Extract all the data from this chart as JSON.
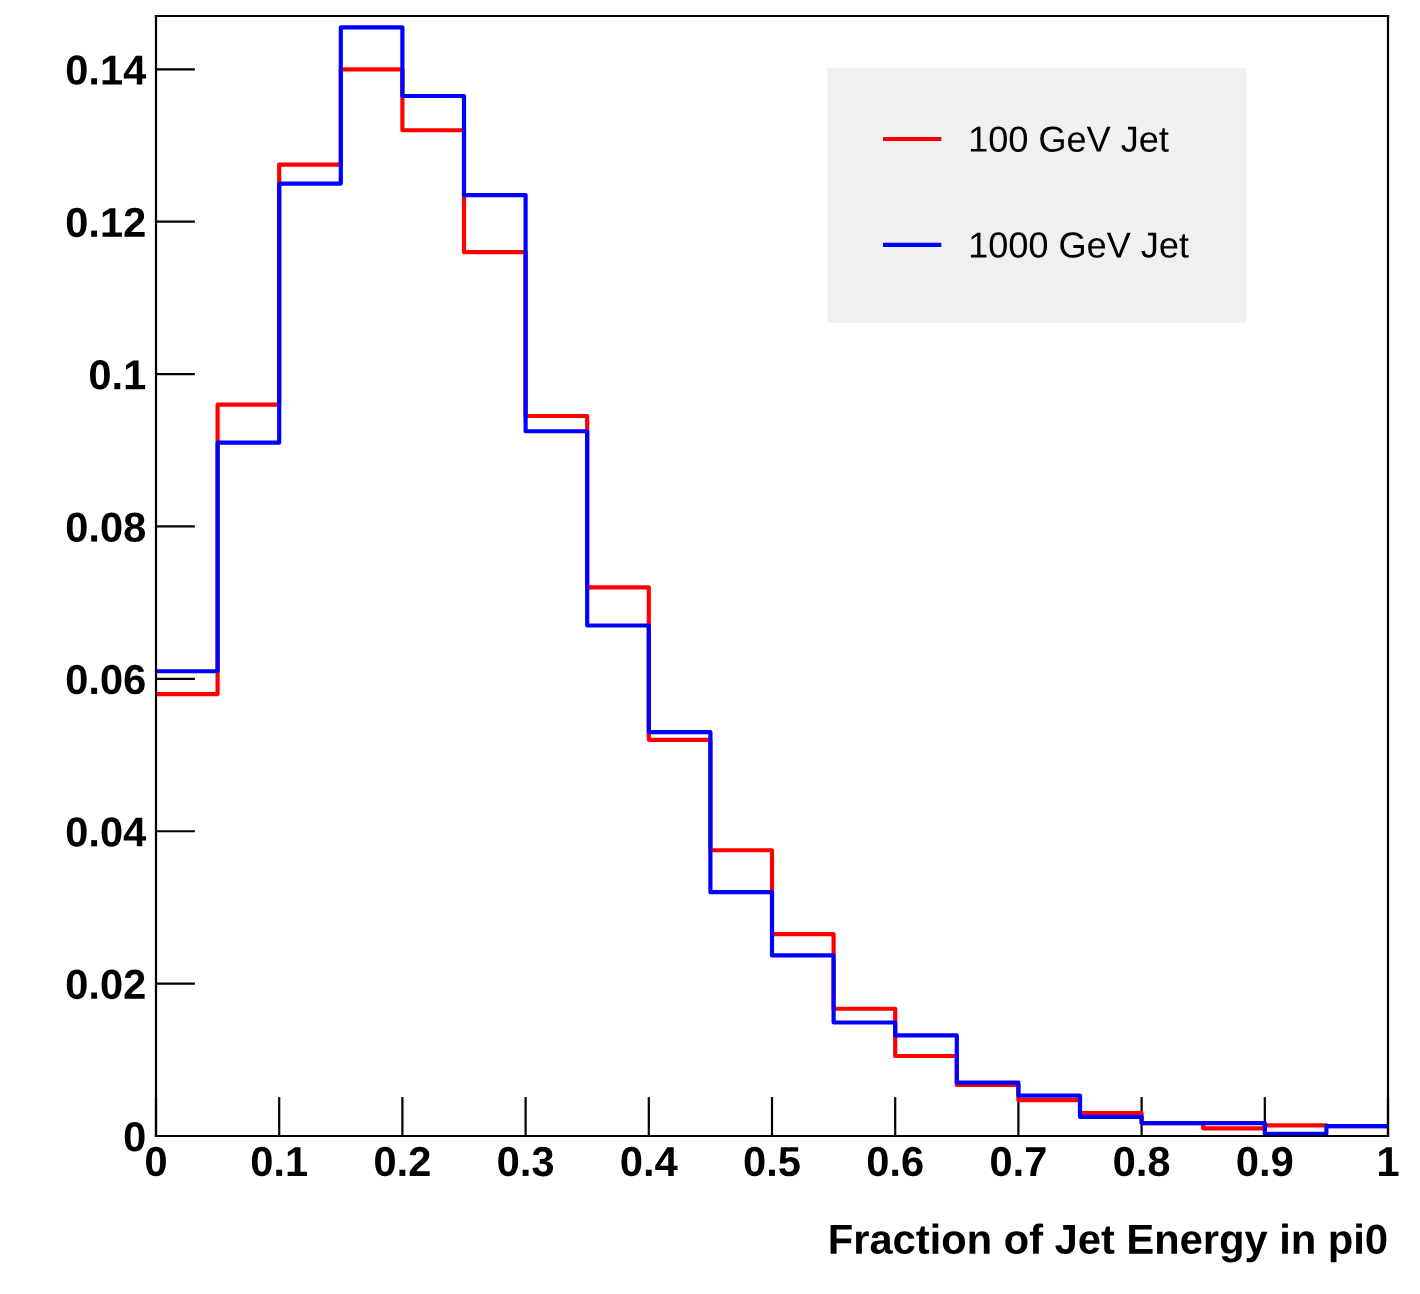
{
  "chart_data": {
    "type": "histogram",
    "xlabel": "Fraction of Jet Energy in pi0",
    "bins": [
      0,
      0.05,
      0.1,
      0.15,
      0.2,
      0.25,
      0.3,
      0.35,
      0.4,
      0.45,
      0.5,
      0.55,
      0.6,
      0.65,
      0.7,
      0.75,
      0.8,
      0.85,
      0.9,
      0.95,
      1
    ],
    "series": [
      {
        "name": "100 GeV Jet",
        "color": "#ff0000",
        "values": [
          0.058,
          0.096,
          0.1275,
          0.14,
          0.132,
          0.116,
          0.0945,
          0.072,
          0.052,
          0.0375,
          0.0265,
          0.0167,
          0.0105,
          0.0067,
          0.0047,
          0.003,
          0.0017,
          0.001,
          0.0014,
          0.0013
        ]
      },
      {
        "name": "1000 GeV Jet",
        "color": "#0000ff",
        "values": [
          0.061,
          0.091,
          0.125,
          0.1455,
          0.1365,
          0.1235,
          0.0925,
          0.067,
          0.053,
          0.032,
          0.0237,
          0.0149,
          0.0132,
          0.007,
          0.0053,
          0.0025,
          0.0017,
          0.0017,
          0.0003,
          0.0013
        ]
      }
    ],
    "xlim": [
      0,
      1
    ],
    "ylim": [
      0,
      0.147
    ],
    "xticks": [
      0,
      0.1,
      0.2,
      0.3,
      0.4,
      0.5,
      0.6,
      0.7,
      0.8,
      0.9,
      1
    ],
    "yticks": [
      0,
      0.02,
      0.04,
      0.06,
      0.08,
      0.1,
      0.12,
      0.14
    ],
    "grid": false,
    "legend": "top right"
  }
}
